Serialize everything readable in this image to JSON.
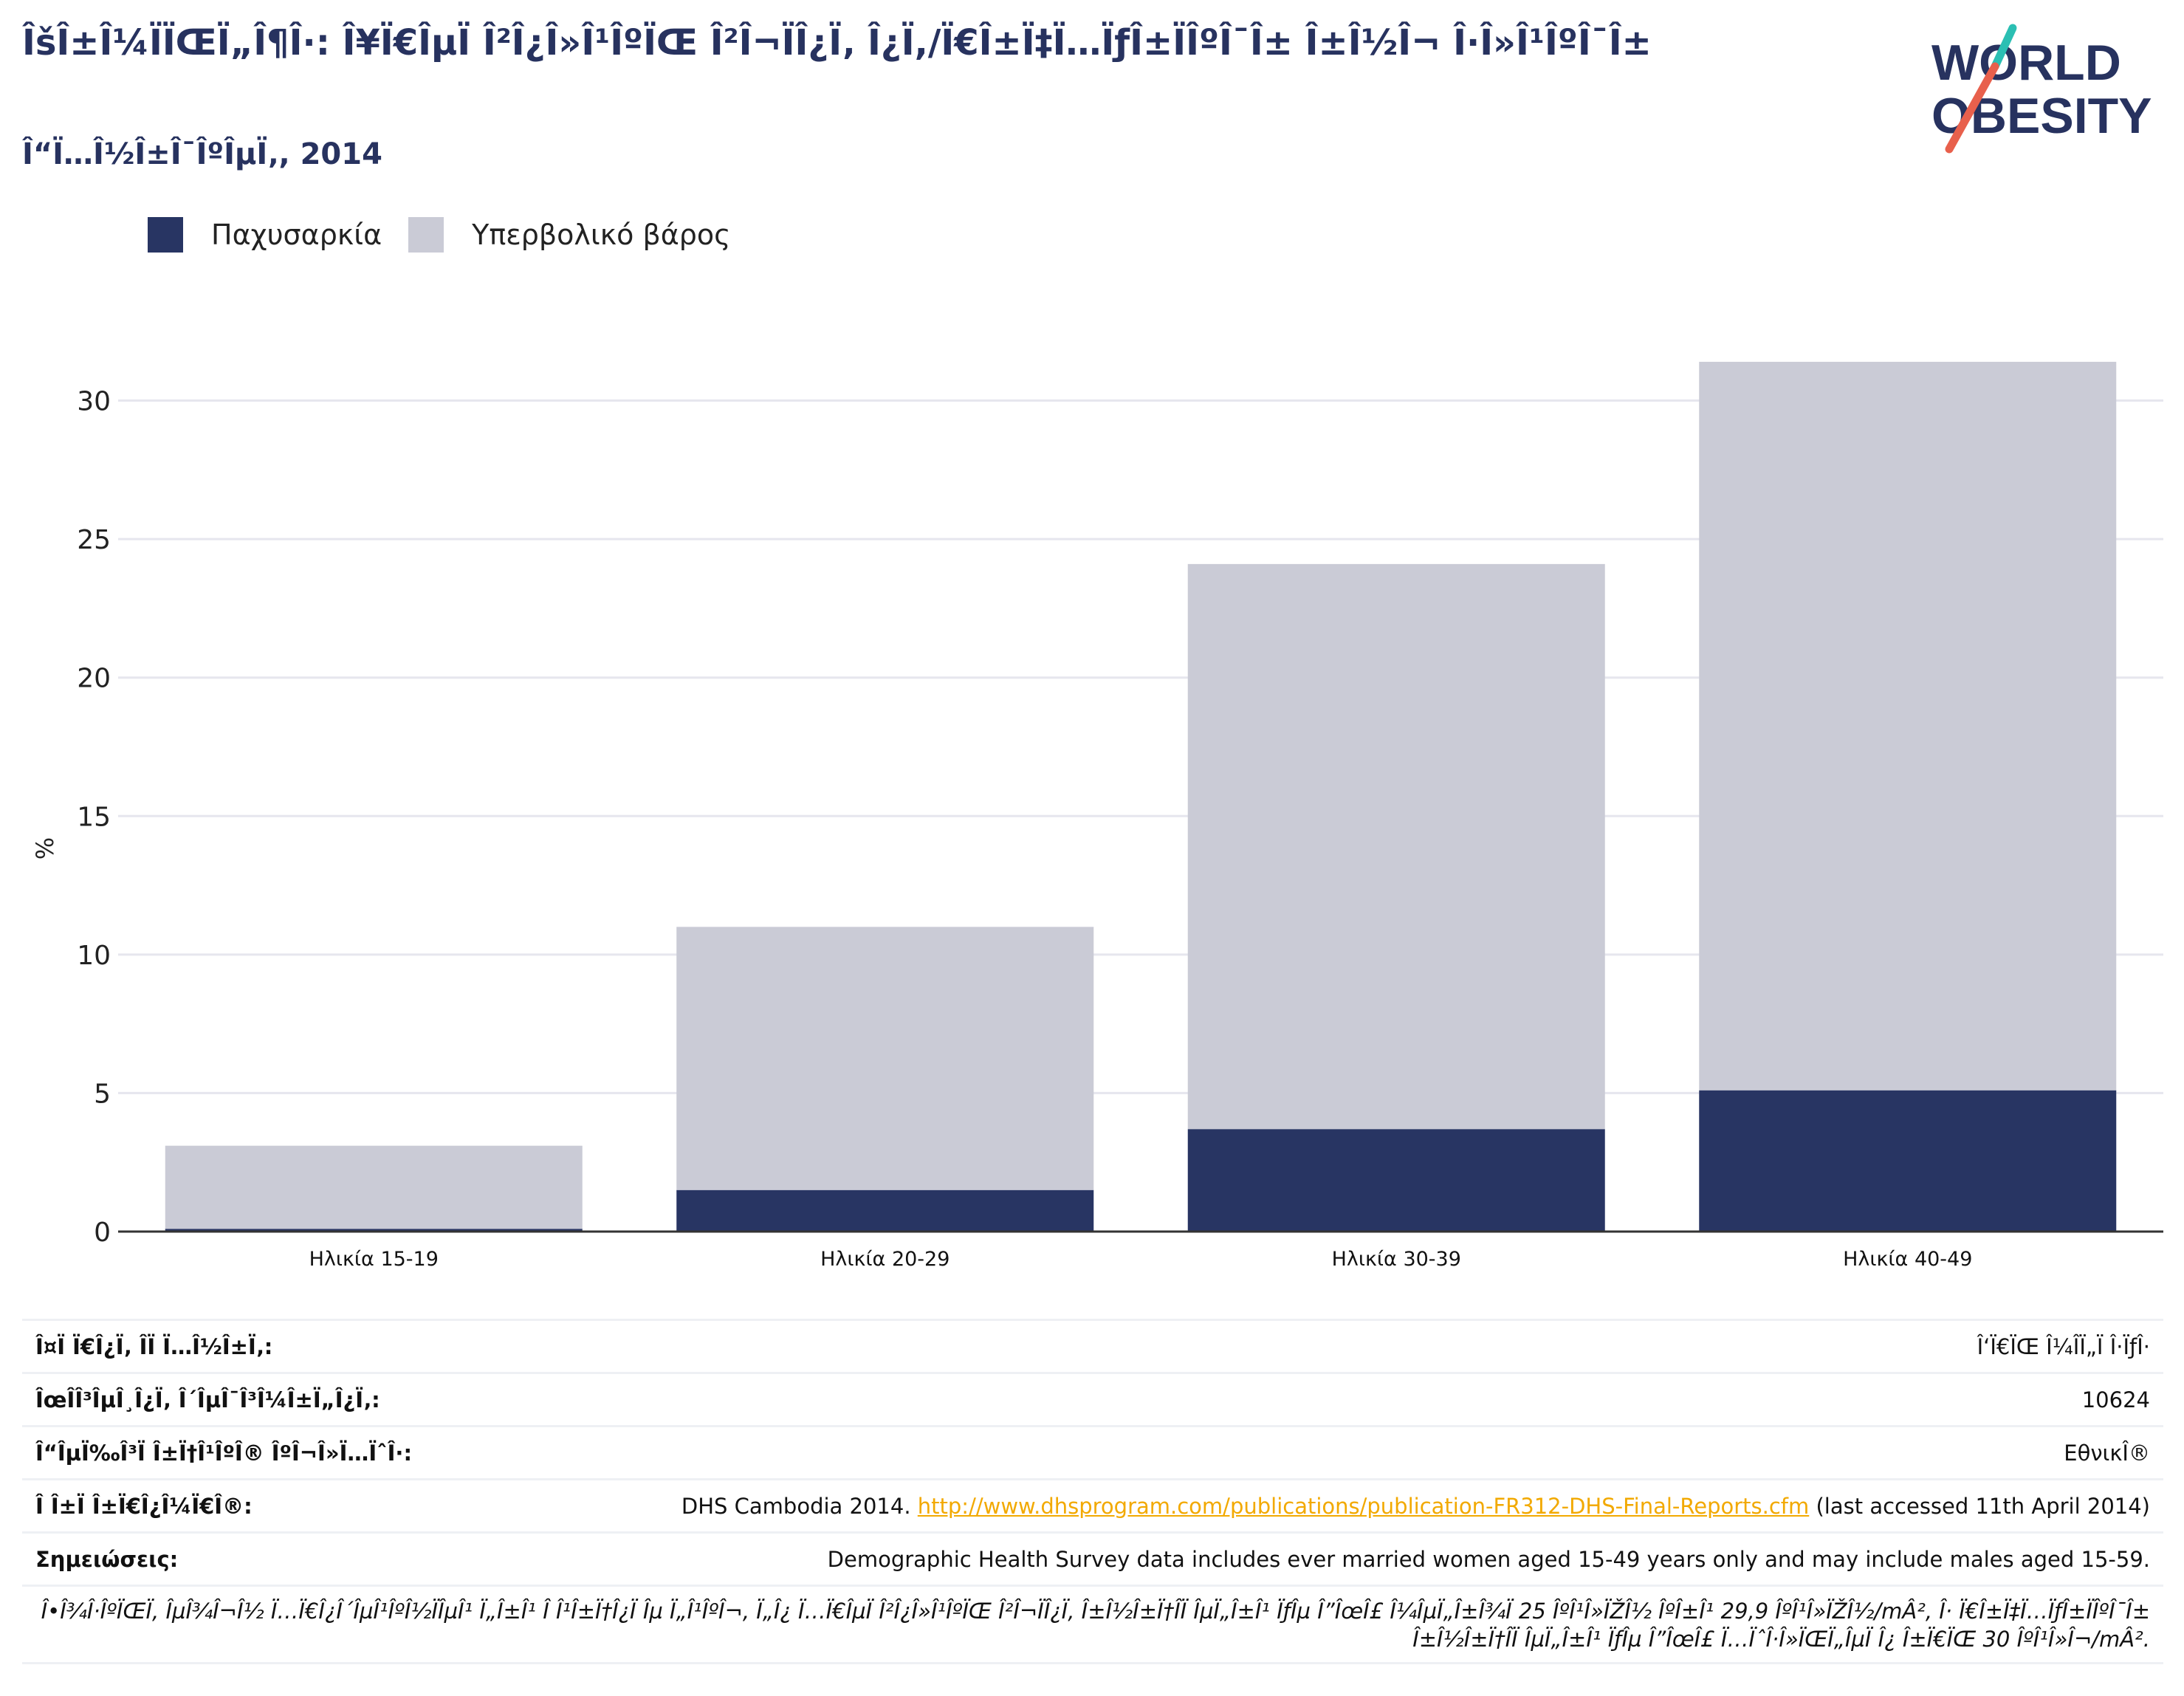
{
  "header": {
    "title": "ÎšÎ±Î¼ÏÏŒÏ„Î¶Î·: Î¥Ï€ÎµÏ Î²Î¿Î»Î¹ÎºÏŒ Î²Î¬ÏÎ¿Ï‚ Î¿Ï,/Ï€Î±Ï‡Ï…ÏƒÎ±ÏÎºÎ¯Î± Î±Î½Î¬ Î·Î»Î¹ÎºÎ¯Î±",
    "subtitle": "Î“Ï…Î½Î±Î¯ÎºÎµÏ‚, 2014"
  },
  "logo": {
    "line1": "WORLD",
    "line2": "OBESITY",
    "accent_teal": "#2bbfb3",
    "accent_coral": "#e8604c"
  },
  "legend": {
    "items": [
      "Παχυσαρκία",
      "Υπερβολικό βάρος"
    ]
  },
  "colors": {
    "obesity": "#283563",
    "overweight": "#cacbd6",
    "axis": "#333333",
    "grid": "#e6e6ee"
  },
  "chart_data": {
    "type": "bar",
    "stacked": true,
    "categories": [
      "Ηλικία 15-19",
      "Ηλικία 20-29",
      "Ηλικία 30-39",
      "Ηλικία 40-49"
    ],
    "series": [
      {
        "name": "Παχυσαρκία",
        "values": [
          0.1,
          1.5,
          3.7,
          5.1
        ]
      },
      {
        "name": "Υπερβολικό βάρος",
        "values": [
          3.0,
          9.5,
          20.4,
          26.3
        ]
      }
    ],
    "ylabel": "%",
    "ylim": [
      0,
      33
    ],
    "yticks": [
      0,
      5,
      10,
      15,
      20,
      25,
      30
    ],
    "grid": true,
    "legend_position": "top-left"
  },
  "info_table": [
    {
      "label": "Î¤Ï Ï€Î¿Ï‚ Î­Ï Ï…Î½Î±Ï‚:",
      "value": "Î‘Ï€ÏŒ Î¼Î­Ï„Ï Î·ÏƒÎ·"
    },
    {
      "label": "ÎœÎ­Î³ÎµÎ¸Î¿Ï‚ Î´ÎµÎ¯Î³Î¼Î±Ï„Î¿Ï‚:",
      "value": "10624"
    },
    {
      "label": "Î“ÎµÏ‰Î³Ï Î±Ï†Î¹ÎºÎ® ÎºÎ¬Î»Ï…ÏˆÎ·:",
      "value": "ΕθνικÎ®"
    },
    {
      "label": "Î Î±Ï Î±Ï€Î¿Î¼Ï€Î®:",
      "value_prefix": "DHS Cambodia 2014. ",
      "link": "http://www.dhsprogram.com/publications/publication-FR312-DHS-Final-Reports.cfm",
      "value_suffix": " (last accessed 11th April 2014)"
    },
    {
      "label": "Σημειώσεις:",
      "value": "Demographic Health Survey data includes ever married women aged 15-49 years only and may include males aged 15-59."
    }
  ],
  "footnote": "Î•Î¾Î·ÎºÏŒÏ‚ ÎµÎ¾Î¬Î½ Ï…Ï€Î¿Î´ÎµÎ¹ÎºÎ½ÏÎµÎ¹ Ï„Î±Î¹ Î Î¹Î±Ï†Î¿Ï Îµ Ï„Î¹ÎºÎ¬, Ï„Î¿ Ï…Ï€ÎµÏ Î²Î¿Î»Î¹ÎºÏŒ Î²Î¬ÏÎ¿Ï‚ Î±Î½Î±Ï†Î­Ï ÎµÏ„Î±Î¹ ÏƒÎµ Î”ÎœÎ£ Î¼ÎµÏ„Î±Î¾Ï 25 ÎºÎ¹Î»ÏŽÎ½ ÎºÎ±Î¹ 29,9 ÎºÎ¹Î»ÏŽÎ½/mÂ², Î· Ï€Î±Ï‡Ï…ÏƒÎ±ÏÎºÎ¯Î± Î±Î½Î±Ï†Î­Ï ÎµÏ„Î±Î¹ ÏƒÎµ Î”ÎœÎ£ Ï…ÏˆÎ·Î»ÏŒÏ„ÎµÏ Î¿ Î±Ï€ÏŒ 30 ÎºÎ¹Î»Î¬/mÂ²."
}
